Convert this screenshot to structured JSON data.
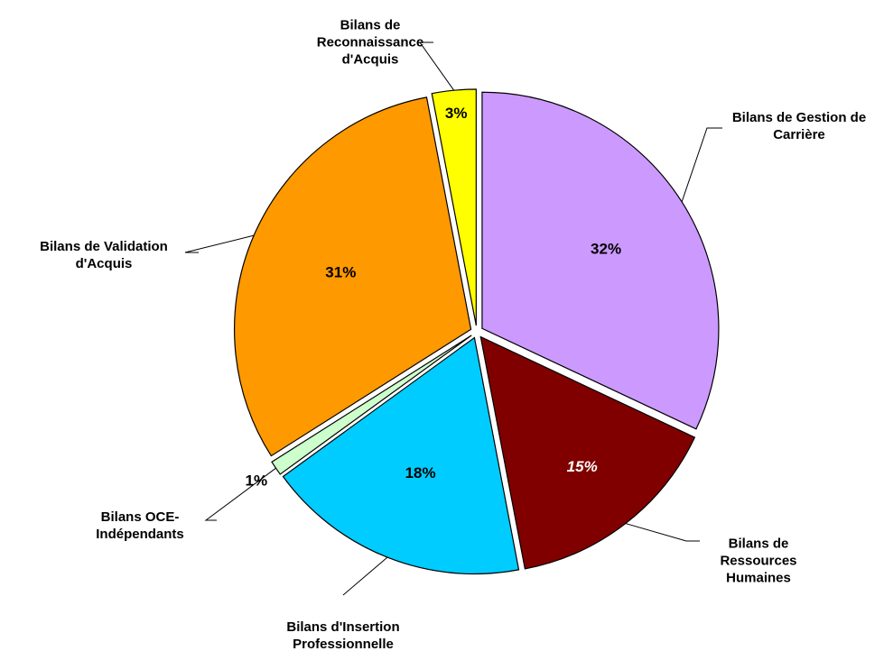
{
  "chart_data": {
    "type": "pie",
    "categories": [
      "Bilans de Gestion de Carrière",
      "Bilans de Ressources Humaines",
      "Bilans d'Insertion Professionnelle",
      "Bilans OCE-Indépendants",
      "Bilans de Validation d'Acquis",
      "Bilans de Reconnaissance d'Acquis"
    ],
    "values": [
      32,
      15,
      18,
      1,
      31,
      3
    ],
    "value_labels": [
      "32%",
      "15%",
      "18%",
      "1%",
      "31%",
      "3%"
    ],
    "colors": [
      "#cc99ff",
      "#800000",
      "#00ccff",
      "#ccffcc",
      "#ff9900",
      "#ffff00"
    ]
  }
}
